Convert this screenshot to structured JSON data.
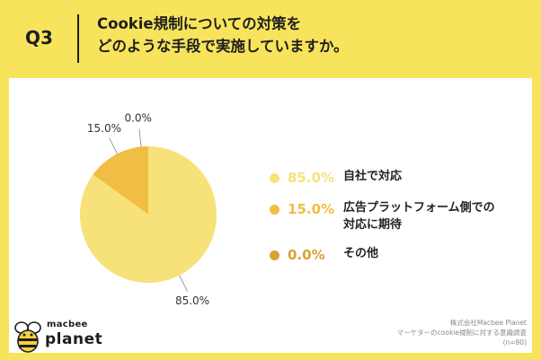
{
  "header": {
    "question_number": "Q3",
    "title_line1": "Cookie規制についての対策を",
    "title_line2": "どのような手段で実施していますか。"
  },
  "chart_data": {
    "type": "pie",
    "categories": [
      "自社で対応",
      "広告プラットフォーム側での対応に期待",
      "その他"
    ],
    "values": [
      85.0,
      15.0,
      0.0
    ],
    "value_labels": [
      "85.0%",
      "15.0%",
      "0.0%"
    ],
    "colors": [
      "#f7e27a",
      "#f1bd42",
      "#dba135"
    ],
    "legend_position": "right"
  },
  "legend": {
    "items": [
      {
        "pct": "85.0%",
        "label_lines": [
          "自社で対応"
        ],
        "color": "#f7e27a"
      },
      {
        "pct": "15.0%",
        "label_lines": [
          "広告プラットフォーム側での",
          "対応に期待"
        ],
        "color": "#f1bd42"
      },
      {
        "pct": "0.0%",
        "label_lines": [
          "その他"
        ],
        "color": "#dba135"
      }
    ]
  },
  "footer": {
    "logo_top": "macbee",
    "logo_bottom": "planet",
    "source_line1": "株式会社Macbee Planet",
    "source_line2": "マーケターのcookie規制に対する意識調査",
    "source_line3": "(n=80)"
  }
}
